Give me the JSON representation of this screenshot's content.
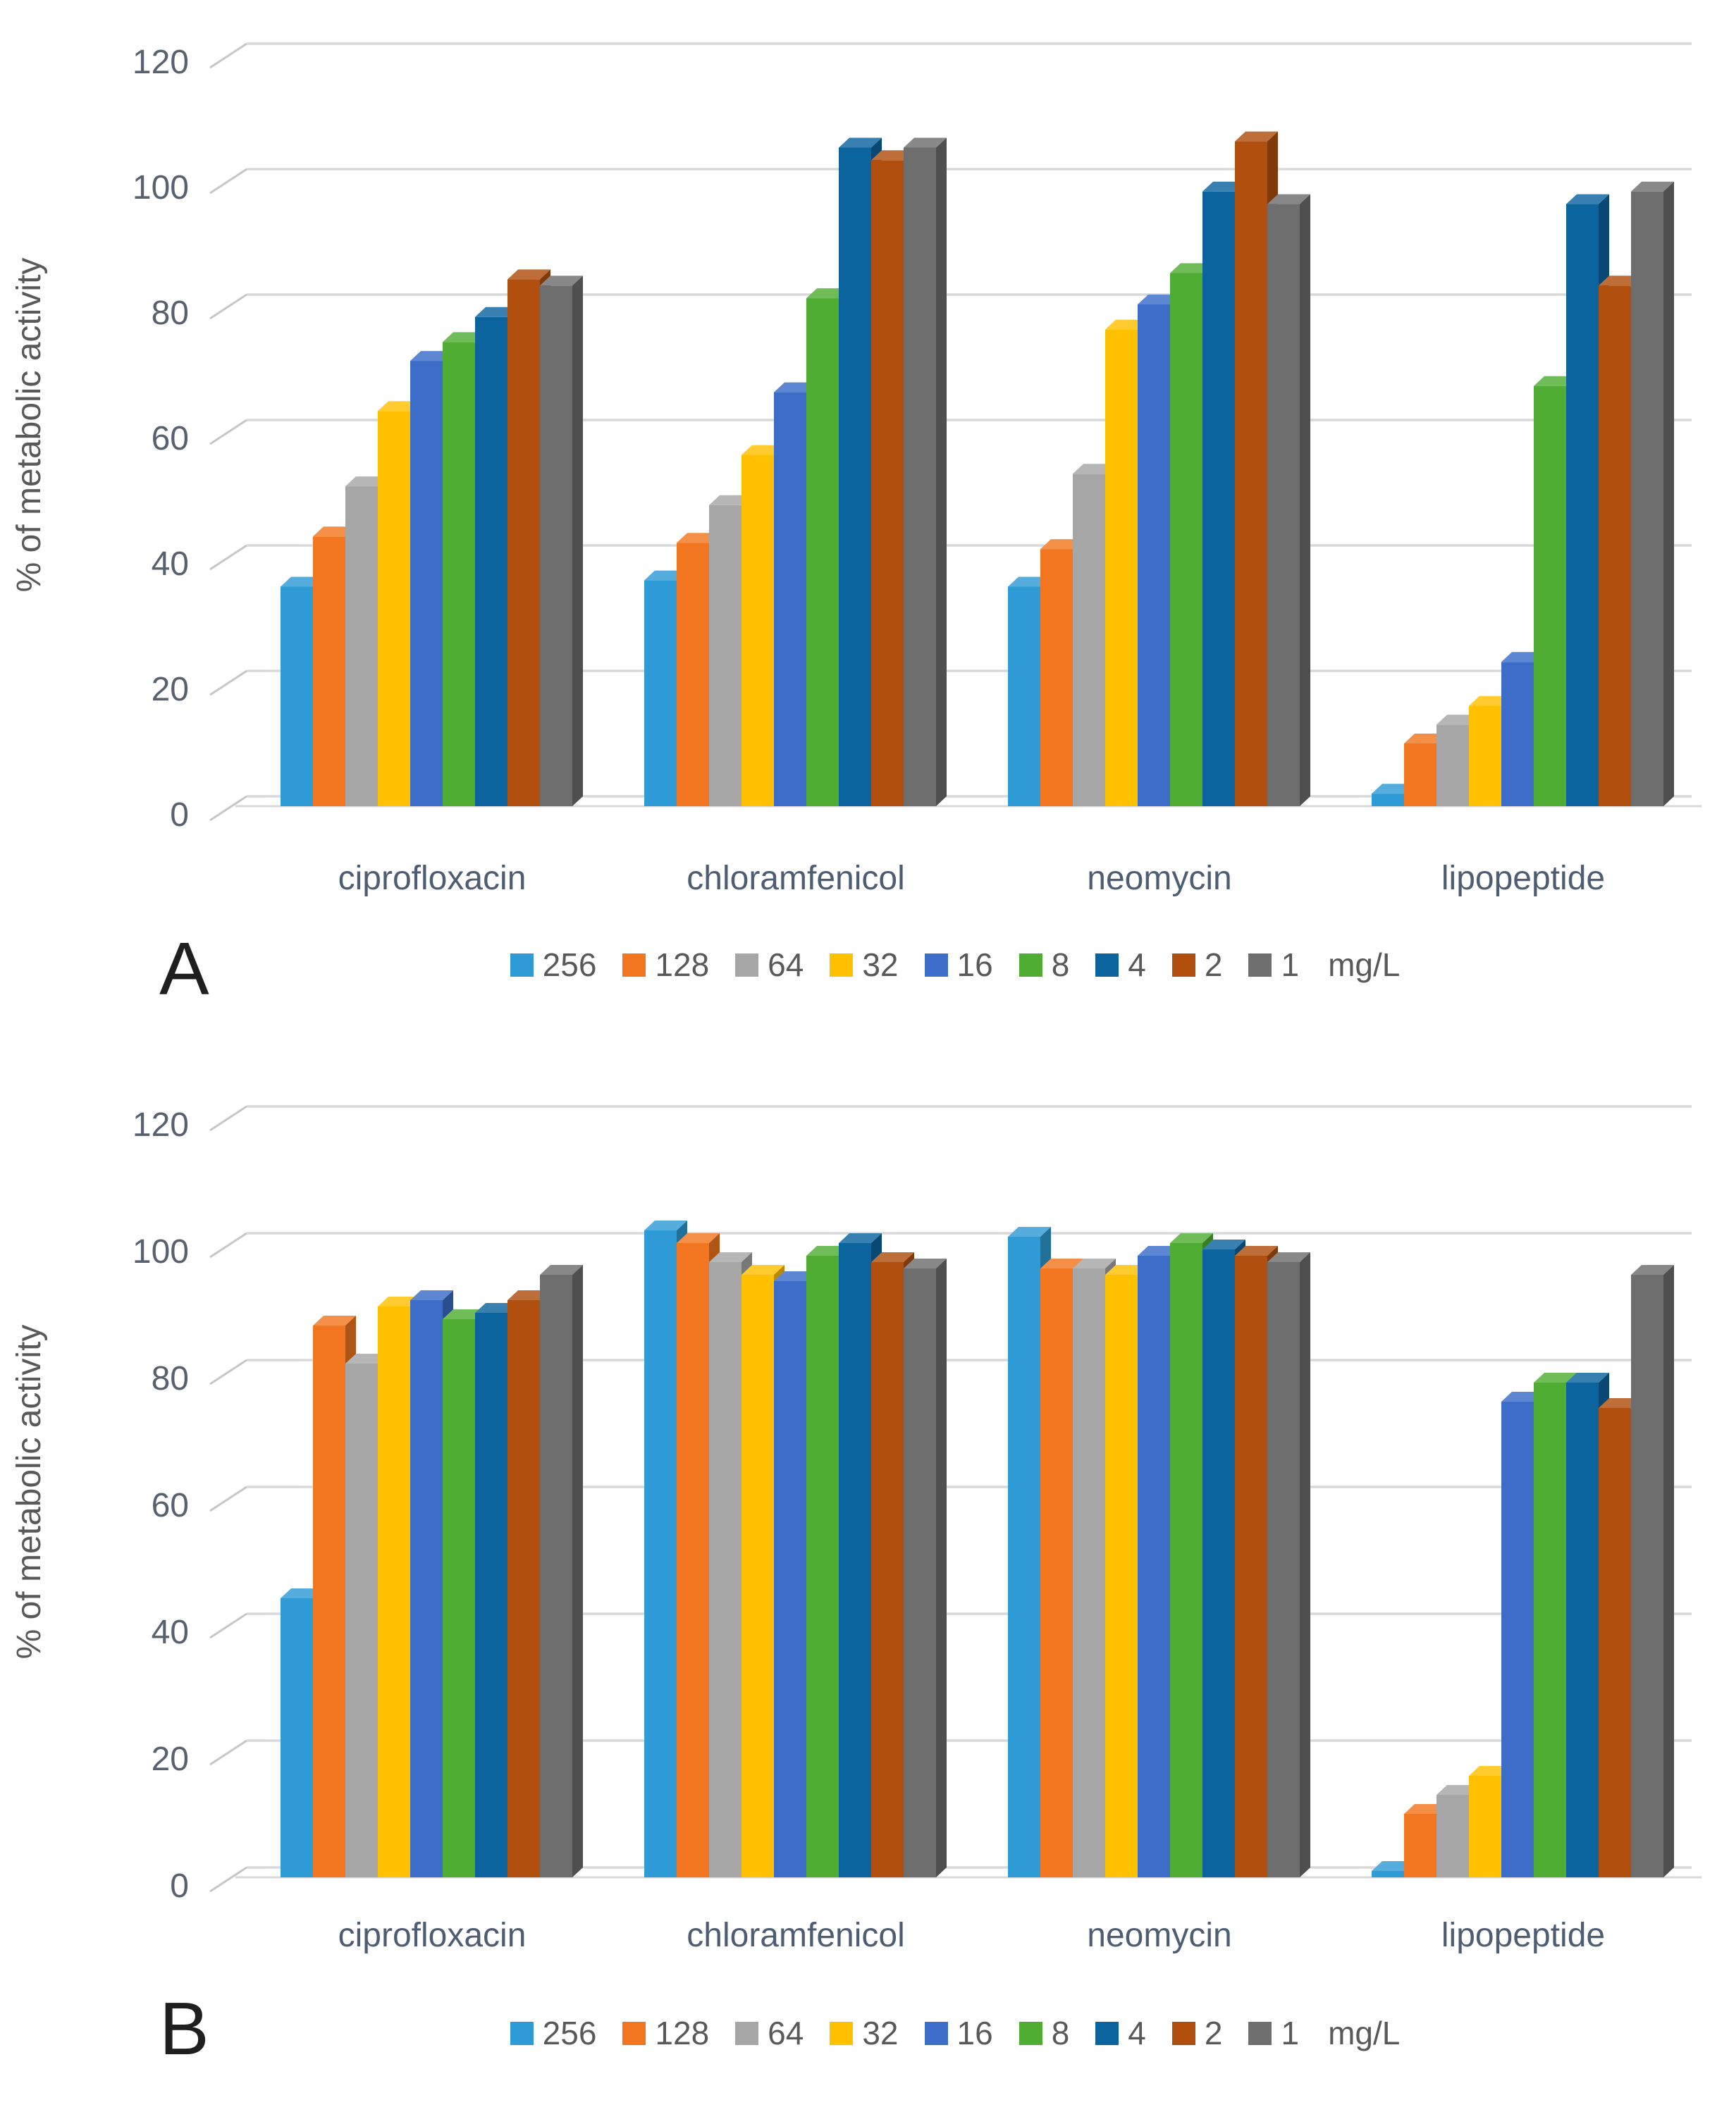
{
  "figure": {
    "background": "#ffffff",
    "panel_count": 2
  },
  "styles": {
    "grid_color": "#d9d9d9",
    "connector_color": "#c6c6c6",
    "baseline_color": "#d9d9d9",
    "tick_color": "#57616f",
    "category_color": "#4d5e74",
    "axis_title_color": "#595959",
    "legend_text_color": "#595959",
    "panel_letter_color": "#1f1f1f"
  },
  "legend": {
    "suffix": "mg/L"
  },
  "chart_data": [
    {
      "type": "bar",
      "panel_label": "A",
      "title": "",
      "xlabel": "",
      "ylabel": "% of metabolic activity",
      "categories": [
        "ciprofloxacin",
        "chloramfenicol",
        "neomycin",
        "lipopeptide"
      ],
      "yticks": [
        0,
        20,
        40,
        60,
        80,
        100,
        120
      ],
      "ylim": [
        0,
        120
      ],
      "grid": true,
      "legend_position": "bottom",
      "units": "mg/L",
      "series": [
        {
          "name": "256",
          "color": "#2E9BD6",
          "values": [
            35,
            36,
            35,
            2
          ]
        },
        {
          "name": "128",
          "color": "#F2761F",
          "values": [
            43,
            42,
            41,
            10
          ]
        },
        {
          "name": "64",
          "color": "#A6A6A6",
          "values": [
            51,
            48,
            53,
            13
          ]
        },
        {
          "name": "32",
          "color": "#FFC000",
          "values": [
            63,
            56,
            76,
            16
          ]
        },
        {
          "name": "16",
          "color": "#3B6DC9",
          "values": [
            71,
            66,
            80,
            23
          ]
        },
        {
          "name": "8",
          "color": "#4FAD33",
          "values": [
            74,
            81,
            85,
            67
          ]
        },
        {
          "name": "4",
          "color": "#0C649F",
          "values": [
            78,
            105,
            98,
            96
          ]
        },
        {
          "name": "2",
          "color": "#B04F0E",
          "values": [
            84,
            103,
            106,
            83
          ]
        },
        {
          "name": "1",
          "color": "#6E6E6E",
          "values": [
            83,
            105,
            96,
            98
          ]
        }
      ]
    },
    {
      "type": "bar",
      "panel_label": "B",
      "title": "",
      "xlabel": "",
      "ylabel": "% of metabolic activity",
      "categories": [
        "ciprofloxacin",
        "chloramfenicol",
        "neomycin",
        "lipopeptide"
      ],
      "yticks": [
        0,
        20,
        40,
        60,
        80,
        100,
        120
      ],
      "ylim": [
        0,
        120
      ],
      "grid": true,
      "legend_position": "bottom",
      "units": "mg/L",
      "series": [
        {
          "name": "256",
          "color": "#2E9BD6",
          "values": [
            44,
            102,
            101,
            1
          ]
        },
        {
          "name": "128",
          "color": "#F2761F",
          "values": [
            87,
            100,
            96,
            10
          ]
        },
        {
          "name": "64",
          "color": "#A6A6A6",
          "values": [
            81,
            97,
            96,
            13
          ]
        },
        {
          "name": "32",
          "color": "#FFC000",
          "values": [
            90,
            95,
            95,
            16
          ]
        },
        {
          "name": "16",
          "color": "#3B6DC9",
          "values": [
            91,
            94,
            98,
            75
          ]
        },
        {
          "name": "8",
          "color": "#4FAD33",
          "values": [
            88,
            98,
            100,
            78
          ]
        },
        {
          "name": "4",
          "color": "#0C649F",
          "values": [
            89,
            100,
            99,
            78
          ]
        },
        {
          "name": "2",
          "color": "#B04F0E",
          "values": [
            91,
            97,
            98,
            74
          ]
        },
        {
          "name": "1",
          "color": "#6E6E6E",
          "values": [
            95,
            96,
            97,
            95
          ]
        }
      ]
    }
  ]
}
